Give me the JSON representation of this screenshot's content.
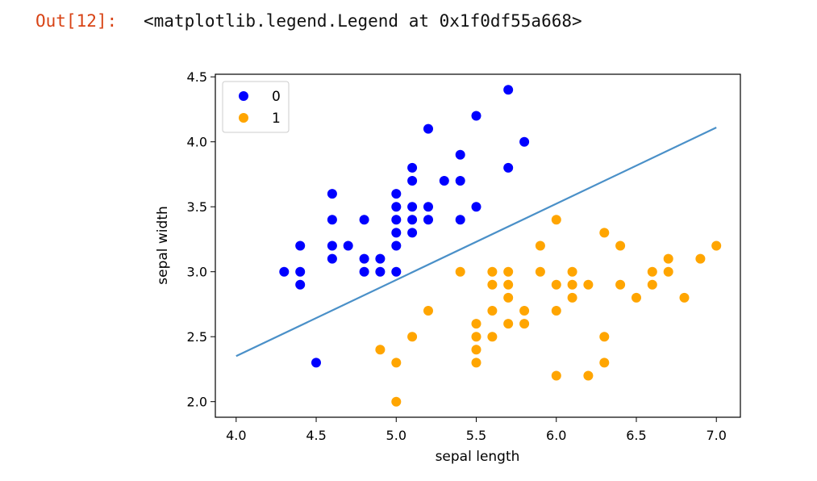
{
  "output": {
    "prompt": "Out[12]:",
    "text": "<matplotlib.legend.Legend at 0x1f0df55a668>"
  },
  "chart_data": {
    "type": "scatter",
    "title": "",
    "xlabel": "sepal length",
    "ylabel": "sepal width",
    "xlim": [
      3.87,
      7.15
    ],
    "ylim": [
      1.88,
      4.52
    ],
    "xticks": [
      "4.0",
      "4.5",
      "5.0",
      "5.5",
      "6.0",
      "6.5",
      "7.0"
    ],
    "yticks": [
      "2.0",
      "2.5",
      "3.0",
      "3.5",
      "4.0",
      "4.5"
    ],
    "grid": false,
    "legend": {
      "placement": "top-left",
      "entries": [
        "0",
        "1"
      ]
    },
    "series": [
      {
        "name": "0",
        "color": "#0000ff",
        "points": [
          [
            4.3,
            3.0
          ],
          [
            4.4,
            3.2
          ],
          [
            4.4,
            3.0
          ],
          [
            4.4,
            2.9
          ],
          [
            4.5,
            2.3
          ],
          [
            4.6,
            3.6
          ],
          [
            4.6,
            3.4
          ],
          [
            4.6,
            3.2
          ],
          [
            4.6,
            3.1
          ],
          [
            4.7,
            3.2
          ],
          [
            4.8,
            3.4
          ],
          [
            4.8,
            3.1
          ],
          [
            4.8,
            3.0
          ],
          [
            4.9,
            3.1
          ],
          [
            4.9,
            3.0
          ],
          [
            5.0,
            3.6
          ],
          [
            5.0,
            3.5
          ],
          [
            5.0,
            3.4
          ],
          [
            5.0,
            3.3
          ],
          [
            5.0,
            3.2
          ],
          [
            5.0,
            3.0
          ],
          [
            5.1,
            3.8
          ],
          [
            5.1,
            3.7
          ],
          [
            5.1,
            3.5
          ],
          [
            5.1,
            3.4
          ],
          [
            5.1,
            3.3
          ],
          [
            5.2,
            4.1
          ],
          [
            5.2,
            3.5
          ],
          [
            5.2,
            3.4
          ],
          [
            5.3,
            3.7
          ],
          [
            5.4,
            3.9
          ],
          [
            5.4,
            3.7
          ],
          [
            5.4,
            3.4
          ],
          [
            5.5,
            4.2
          ],
          [
            5.5,
            3.5
          ],
          [
            5.7,
            4.4
          ],
          [
            5.7,
            3.8
          ],
          [
            5.8,
            4.0
          ]
        ]
      },
      {
        "name": "1",
        "color": "#ffa500",
        "points": [
          [
            4.9,
            2.4
          ],
          [
            5.0,
            2.3
          ],
          [
            5.0,
            2.0
          ],
          [
            5.1,
            2.5
          ],
          [
            5.2,
            2.7
          ],
          [
            5.4,
            3.0
          ],
          [
            5.5,
            2.6
          ],
          [
            5.5,
            2.5
          ],
          [
            5.5,
            2.4
          ],
          [
            5.5,
            2.3
          ],
          [
            5.6,
            3.0
          ],
          [
            5.6,
            2.9
          ],
          [
            5.6,
            2.7
          ],
          [
            5.6,
            2.5
          ],
          [
            5.7,
            3.0
          ],
          [
            5.7,
            2.9
          ],
          [
            5.7,
            2.8
          ],
          [
            5.7,
            2.6
          ],
          [
            5.8,
            2.7
          ],
          [
            5.8,
            2.6
          ],
          [
            5.9,
            3.2
          ],
          [
            5.9,
            3.0
          ],
          [
            6.0,
            3.4
          ],
          [
            6.0,
            2.9
          ],
          [
            6.0,
            2.7
          ],
          [
            6.0,
            2.2
          ],
          [
            6.1,
            3.0
          ],
          [
            6.1,
            2.9
          ],
          [
            6.1,
            2.8
          ],
          [
            6.2,
            2.9
          ],
          [
            6.2,
            2.2
          ],
          [
            6.3,
            3.3
          ],
          [
            6.3,
            2.5
          ],
          [
            6.3,
            2.3
          ],
          [
            6.4,
            3.2
          ],
          [
            6.4,
            2.9
          ],
          [
            6.5,
            2.8
          ],
          [
            6.6,
            3.0
          ],
          [
            6.6,
            2.9
          ],
          [
            6.7,
            3.1
          ],
          [
            6.7,
            3.0
          ],
          [
            6.8,
            2.8
          ],
          [
            6.9,
            3.1
          ],
          [
            7.0,
            3.2
          ]
        ]
      }
    ],
    "decision_line": {
      "color": "#4a90c8",
      "points": [
        [
          4.0,
          2.35
        ],
        [
          7.0,
          4.11
        ]
      ]
    }
  }
}
